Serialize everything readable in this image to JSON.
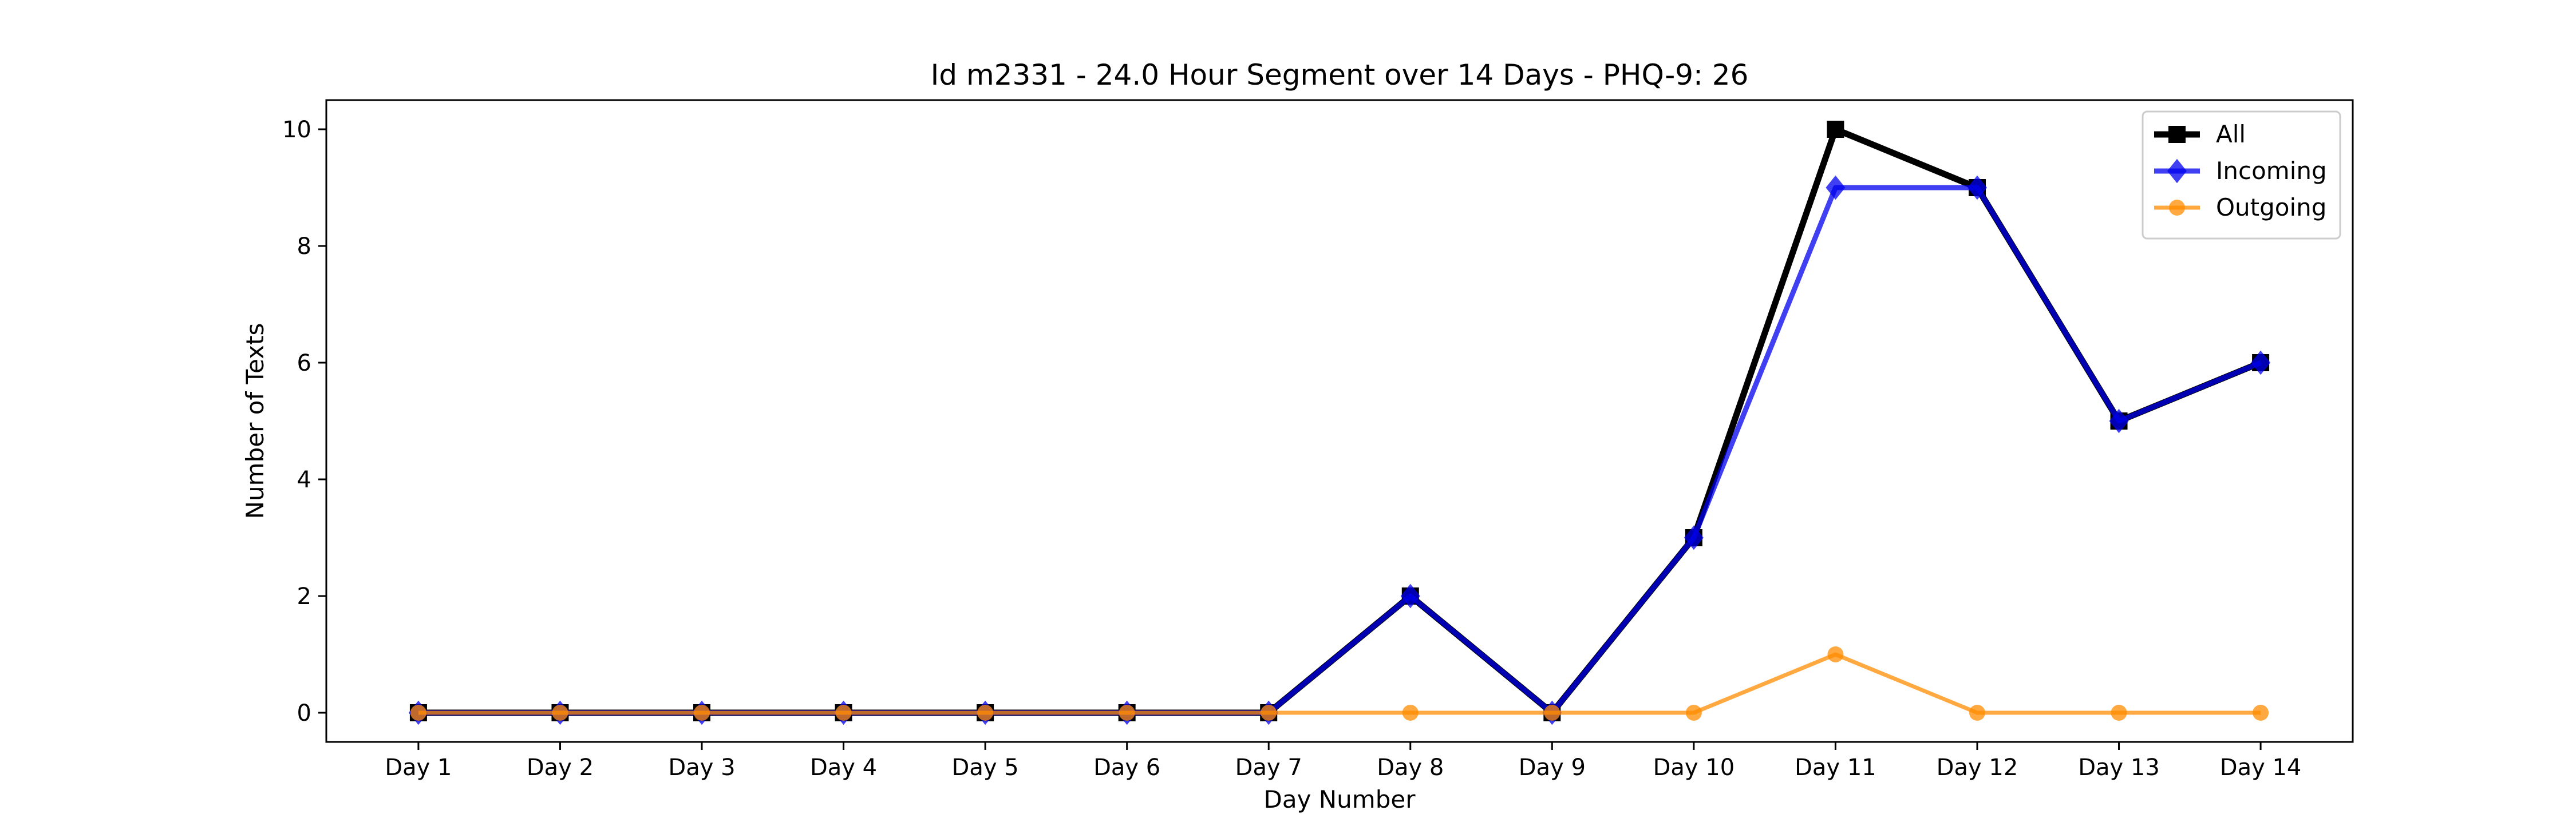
{
  "chart_data": {
    "type": "line",
    "title": "Id m2331 - 24.0 Hour Segment over 14 Days - PHQ-9: 26",
    "xlabel": "Day Number",
    "ylabel": "Number of Texts",
    "categories": [
      "Day 1",
      "Day 2",
      "Day 3",
      "Day 4",
      "Day 5",
      "Day 6",
      "Day 7",
      "Day 8",
      "Day 9",
      "Day 10",
      "Day 11",
      "Day 12",
      "Day 13",
      "Day 14"
    ],
    "y_ticks": [
      "0",
      "2",
      "4",
      "6",
      "8",
      "10"
    ],
    "ylim": [
      -0.5,
      10.5
    ],
    "grid": false,
    "legend_position": "top-right",
    "series": [
      {
        "name": "All",
        "values": [
          0,
          0,
          0,
          0,
          0,
          0,
          0,
          2,
          0,
          3,
          10,
          9,
          5,
          6
        ],
        "color": "#000000",
        "marker": "square"
      },
      {
        "name": "Incoming",
        "values": [
          0,
          0,
          0,
          0,
          0,
          0,
          0,
          2,
          0,
          3,
          9,
          9,
          5,
          6
        ],
        "color": "#0000ee",
        "marker": "diamond"
      },
      {
        "name": "Outgoing",
        "values": [
          0,
          0,
          0,
          0,
          0,
          0,
          0,
          0,
          0,
          0,
          1,
          0,
          0,
          0
        ],
        "color": "#ff8c00",
        "marker": "circle"
      }
    ]
  }
}
